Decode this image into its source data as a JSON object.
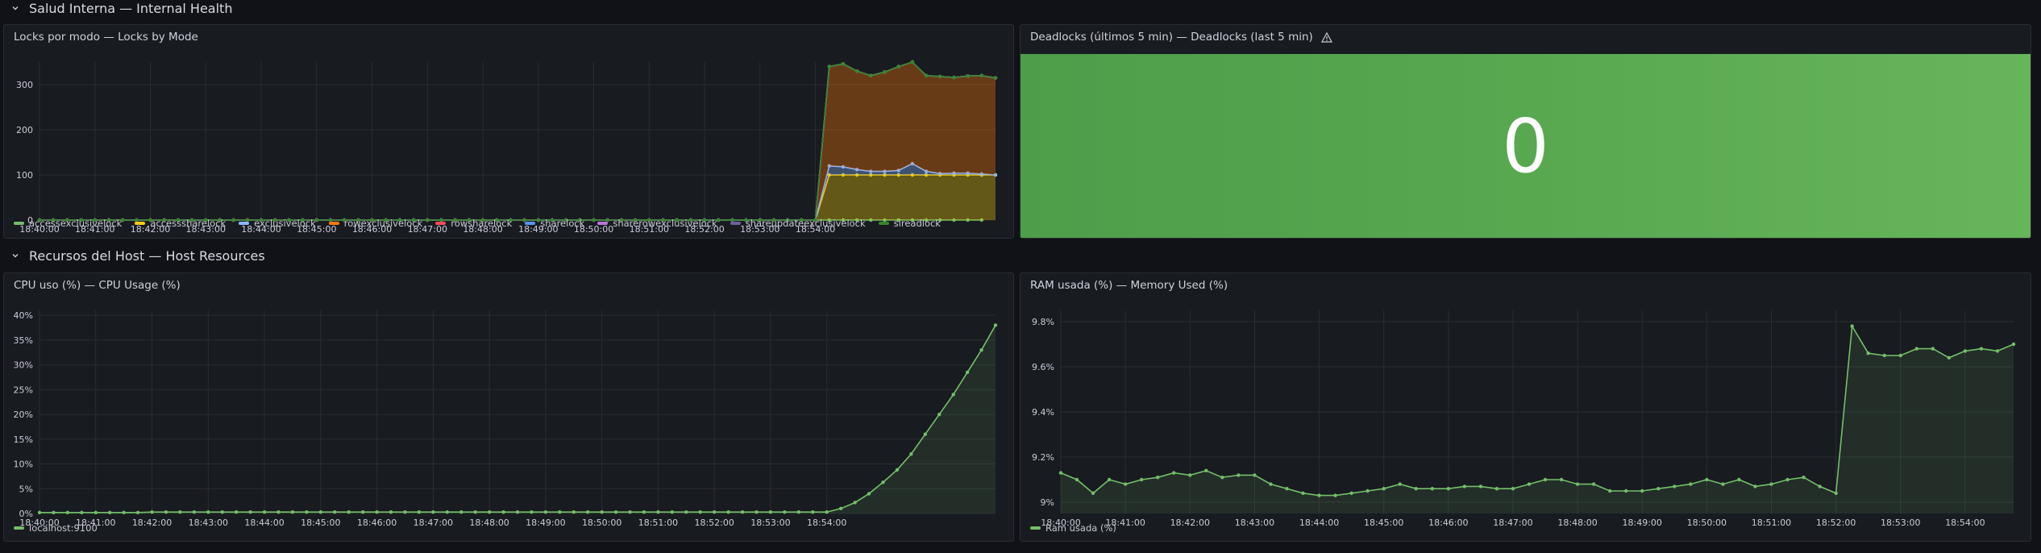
{
  "rows": [
    {
      "title": "Salud Interna — Internal Health",
      "icon": "chevron-down-icon"
    },
    {
      "title": "Recursos del Host — Host Resources",
      "icon": "chevron-down-icon"
    }
  ],
  "panels": {
    "locks": {
      "title": "Locks por modo — Locks by Mode"
    },
    "deadlocks": {
      "title": "Deadlocks (últimos 5 min) — Deadlocks (last 5 min)",
      "value": "0",
      "icon": "warning-triangle-icon",
      "background": "#56a64b"
    },
    "cpu": {
      "title": "CPU uso (%) — CPU Usage (%)"
    },
    "ram": {
      "title": "RAM usada (%) — Memory Used (%)"
    }
  },
  "colors": {
    "background": "#111217",
    "panel": "#181b1f",
    "grid": "#2a2d33",
    "text": "#ccccdc",
    "green": "#73bf69"
  },
  "chart_data": [
    {
      "id": "locks",
      "type": "area",
      "title": "Locks por modo — Locks by Mode",
      "x_ticks": [
        "18:40:00",
        "18:41:00",
        "18:42:00",
        "18:43:00",
        "18:44:00",
        "18:45:00",
        "18:46:00",
        "18:47:00",
        "18:48:00",
        "18:49:00",
        "18:50:00",
        "18:51:00",
        "18:52:00",
        "18:53:00",
        "18:54:00"
      ],
      "x_start": "18:40:00",
      "x_interval_seconds": 15,
      "y_ticks": [
        "0",
        "100",
        "200",
        "300"
      ],
      "ylim": [
        0,
        350
      ],
      "stacked": true,
      "legend_position": "bottom",
      "series": [
        {
          "name": "accessexclusivelock",
          "color": "#73bf69",
          "values": [
            0,
            0,
            0,
            0,
            0,
            0,
            0,
            0,
            0,
            0,
            0,
            0,
            0,
            0,
            0,
            0,
            0,
            0,
            0,
            0,
            0,
            0,
            0,
            0,
            0,
            0,
            0,
            0,
            0,
            0,
            0,
            0,
            0,
            0,
            0,
            0,
            0,
            0,
            0,
            0,
            0,
            0,
            0,
            0,
            0,
            0,
            0,
            0,
            0,
            0,
            0,
            0,
            0,
            0,
            0,
            0,
            0,
            0,
            0,
            0,
            0,
            0,
            0,
            0,
            0,
            0,
            0,
            0,
            0
          ]
        },
        {
          "name": "accesssharelock",
          "color": "#f2cc0c",
          "values": [
            0,
            0,
            0,
            0,
            0,
            0,
            0,
            0,
            0,
            0,
            0,
            0,
            0,
            0,
            0,
            0,
            0,
            0,
            0,
            0,
            0,
            0,
            0,
            0,
            0,
            0,
            0,
            0,
            0,
            0,
            0,
            0,
            0,
            0,
            0,
            0,
            0,
            0,
            0,
            0,
            0,
            0,
            0,
            0,
            0,
            0,
            0,
            0,
            0,
            0,
            0,
            0,
            0,
            0,
            0,
            0,
            0,
            100,
            100,
            100,
            100,
            100,
            100,
            100,
            100,
            100,
            100,
            100,
            100,
            100
          ]
        },
        {
          "name": "exclusivelock",
          "color": "#8ab8ff",
          "values": [
            0,
            0,
            0,
            0,
            0,
            0,
            0,
            0,
            0,
            0,
            0,
            0,
            0,
            0,
            0,
            0,
            0,
            0,
            0,
            0,
            0,
            0,
            0,
            0,
            0,
            0,
            0,
            0,
            0,
            0,
            0,
            0,
            0,
            0,
            0,
            0,
            0,
            0,
            0,
            0,
            0,
            0,
            0,
            0,
            0,
            0,
            0,
            0,
            0,
            0,
            0,
            0,
            0,
            0,
            0,
            0,
            0,
            20,
            18,
            12,
            8,
            8,
            10,
            25,
            8,
            3,
            4,
            4,
            2,
            0
          ]
        },
        {
          "name": "rowexclusivelock",
          "color": "#ff780a",
          "values": [
            0,
            0,
            0,
            0,
            0,
            0,
            0,
            0,
            0,
            0,
            0,
            0,
            0,
            0,
            0,
            0,
            0,
            0,
            0,
            0,
            0,
            0,
            0,
            0,
            0,
            0,
            0,
            0,
            0,
            0,
            0,
            0,
            0,
            0,
            0,
            0,
            0,
            0,
            0,
            0,
            0,
            0,
            0,
            0,
            0,
            0,
            0,
            0,
            0,
            0,
            0,
            0,
            0,
            0,
            0,
            0,
            0,
            220,
            228,
            218,
            212,
            220,
            230,
            225,
            212,
            215,
            212,
            215,
            218,
            215
          ]
        },
        {
          "name": "rowsharelock",
          "color": "#f2495c",
          "values": [
            0,
            0,
            0,
            0,
            0,
            0,
            0,
            0,
            0,
            0,
            0,
            0,
            0,
            0,
            0,
            0,
            0,
            0,
            0,
            0,
            0,
            0,
            0,
            0,
            0,
            0,
            0,
            0,
            0,
            0,
            0,
            0,
            0,
            0,
            0,
            0,
            0,
            0,
            0,
            0,
            0,
            0,
            0,
            0,
            0,
            0,
            0,
            0,
            0,
            0,
            0,
            0,
            0,
            0,
            0,
            0,
            0,
            0,
            0,
            0,
            0,
            0,
            0,
            0,
            0,
            0,
            0,
            0,
            0,
            0
          ]
        },
        {
          "name": "sharelock",
          "color": "#5794f2",
          "values": [
            0,
            0,
            0,
            0,
            0,
            0,
            0,
            0,
            0,
            0,
            0,
            0,
            0,
            0,
            0,
            0,
            0,
            0,
            0,
            0,
            0,
            0,
            0,
            0,
            0,
            0,
            0,
            0,
            0,
            0,
            0,
            0,
            0,
            0,
            0,
            0,
            0,
            0,
            0,
            0,
            0,
            0,
            0,
            0,
            0,
            0,
            0,
            0,
            0,
            0,
            0,
            0,
            0,
            0,
            0,
            0,
            0,
            0,
            0,
            0,
            0,
            0,
            0,
            0,
            0,
            0,
            0,
            0,
            0,
            0
          ]
        },
        {
          "name": "sharerowexclusivelock",
          "color": "#b877d9",
          "values": [
            0,
            0,
            0,
            0,
            0,
            0,
            0,
            0,
            0,
            0,
            0,
            0,
            0,
            0,
            0,
            0,
            0,
            0,
            0,
            0,
            0,
            0,
            0,
            0,
            0,
            0,
            0,
            0,
            0,
            0,
            0,
            0,
            0,
            0,
            0,
            0,
            0,
            0,
            0,
            0,
            0,
            0,
            0,
            0,
            0,
            0,
            0,
            0,
            0,
            0,
            0,
            0,
            0,
            0,
            0,
            0,
            0,
            0,
            0,
            0,
            0,
            0,
            0,
            0,
            0,
            0,
            0,
            0,
            0,
            0
          ]
        },
        {
          "name": "shareupdateexclusivelock",
          "color": "#705da0",
          "values": [
            0,
            0,
            0,
            0,
            0,
            0,
            0,
            0,
            0,
            0,
            0,
            0,
            0,
            0,
            0,
            0,
            0,
            0,
            0,
            0,
            0,
            0,
            0,
            0,
            0,
            0,
            0,
            0,
            0,
            0,
            0,
            0,
            0,
            0,
            0,
            0,
            0,
            0,
            0,
            0,
            0,
            0,
            0,
            0,
            0,
            0,
            0,
            0,
            0,
            0,
            0,
            0,
            0,
            0,
            0,
            0,
            0,
            0,
            0,
            0,
            0,
            0,
            0,
            0,
            0,
            0,
            0,
            0,
            0,
            0
          ]
        },
        {
          "name": "sireadlock",
          "color": "#37872d",
          "values": [
            0,
            0,
            0,
            0,
            0,
            0,
            0,
            0,
            0,
            0,
            0,
            0,
            0,
            0,
            0,
            0,
            0,
            0,
            0,
            0,
            0,
            0,
            0,
            0,
            0,
            0,
            0,
            0,
            0,
            0,
            0,
            0,
            0,
            0,
            0,
            0,
            0,
            0,
            0,
            0,
            0,
            0,
            0,
            0,
            0,
            0,
            0,
            0,
            0,
            0,
            0,
            0,
            0,
            0,
            0,
            0,
            0,
            0,
            0,
            0,
            0,
            0,
            0,
            0,
            0,
            0,
            0,
            0,
            0,
            0
          ]
        }
      ]
    },
    {
      "id": "cpu",
      "type": "area",
      "title": "CPU uso (%) — CPU Usage (%)",
      "x_ticks": [
        "18:40:00",
        "18:41:00",
        "18:42:00",
        "18:43:00",
        "18:44:00",
        "18:45:00",
        "18:46:00",
        "18:47:00",
        "18:48:00",
        "18:49:00",
        "18:50:00",
        "18:51:00",
        "18:52:00",
        "18:53:00",
        "18:54:00"
      ],
      "x_start": "18:40:00",
      "x_interval_seconds": 15,
      "y_ticks": [
        "0%",
        "5%",
        "10%",
        "15%",
        "20%",
        "25%",
        "30%",
        "35%",
        "40%"
      ],
      "ylim": [
        0,
        41
      ],
      "legend_position": "bottom",
      "series": [
        {
          "name": "localhost:9100",
          "color": "#73bf69",
          "values": [
            0.2,
            0.2,
            0.2,
            0.2,
            0.2,
            0.2,
            0.2,
            0.2,
            0.3,
            0.3,
            0.3,
            0.3,
            0.3,
            0.3,
            0.3,
            0.3,
            0.3,
            0.3,
            0.3,
            0.3,
            0.3,
            0.3,
            0.3,
            0.3,
            0.3,
            0.3,
            0.3,
            0.3,
            0.3,
            0.3,
            0.3,
            0.3,
            0.3,
            0.3,
            0.3,
            0.3,
            0.3,
            0.3,
            0.3,
            0.3,
            0.3,
            0.3,
            0.3,
            0.3,
            0.3,
            0.3,
            0.3,
            0.3,
            0.3,
            0.3,
            0.3,
            0.3,
            0.3,
            0.3,
            0.3,
            0.3,
            0.3,
            1.0,
            2.2,
            4.0,
            6.3,
            8.8,
            12.0,
            16.0,
            20.0,
            24.0,
            28.5,
            33.0,
            38.0
          ]
        }
      ]
    },
    {
      "id": "ram",
      "type": "area",
      "title": "RAM usada (%) — Memory Used (%)",
      "x_ticks": [
        "18:40:00",
        "18:41:00",
        "18:42:00",
        "18:43:00",
        "18:44:00",
        "18:45:00",
        "18:46:00",
        "18:47:00",
        "18:48:00",
        "18:49:00",
        "18:50:00",
        "18:51:00",
        "18:52:00",
        "18:53:00",
        "18:54:00"
      ],
      "x_start": "18:40:00",
      "x_interval_seconds": 15,
      "y_ticks": [
        "9%",
        "9.2%",
        "9.4%",
        "9.6%",
        "9.8%"
      ],
      "ylim": [
        8.95,
        9.85
      ],
      "legend_position": "bottom",
      "series": [
        {
          "name": "Ram usada (%)",
          "color": "#73bf69",
          "values": [
            9.13,
            9.1,
            9.04,
            9.1,
            9.08,
            9.1,
            9.11,
            9.13,
            9.12,
            9.14,
            9.11,
            9.12,
            9.12,
            9.08,
            9.06,
            9.04,
            9.03,
            9.03,
            9.04,
            9.05,
            9.06,
            9.08,
            9.06,
            9.06,
            9.06,
            9.07,
            9.07,
            9.06,
            9.06,
            9.08,
            9.1,
            9.1,
            9.08,
            9.08,
            9.05,
            9.05,
            9.05,
            9.06,
            9.07,
            9.08,
            9.1,
            9.08,
            9.1,
            9.07,
            9.08,
            9.1,
            9.11,
            9.07,
            9.04,
            9.78,
            9.66,
            9.65,
            9.65,
            9.68,
            9.68,
            9.64,
            9.67,
            9.68,
            9.67,
            9.7
          ]
        }
      ]
    }
  ]
}
